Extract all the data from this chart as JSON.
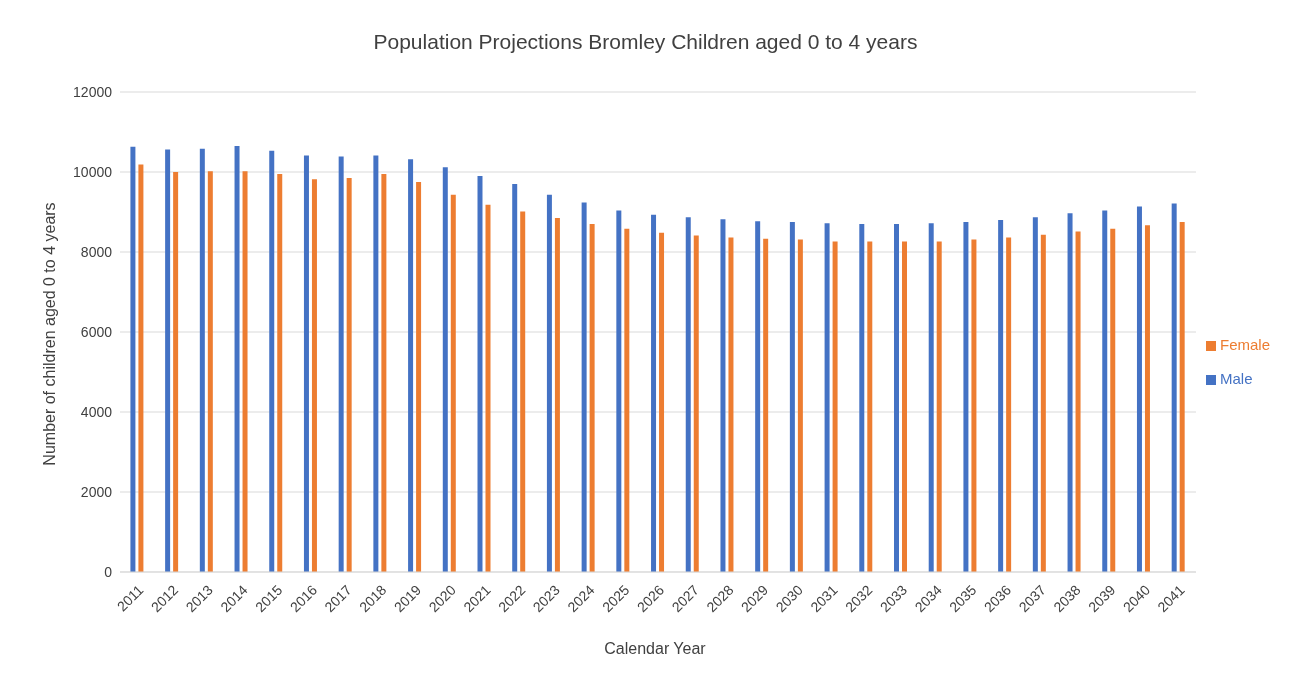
{
  "chart_data": {
    "type": "bar",
    "title": "Population Projections Bromley Children aged 0 to 4 years",
    "xlabel": "Calendar Year",
    "ylabel": "Number of children aged 0 to 4 years",
    "categories": [
      "2011",
      "2012",
      "2013",
      "2014",
      "2015",
      "2016",
      "2017",
      "2018",
      "2019",
      "2020",
      "2021",
      "2022",
      "2023",
      "2024",
      "2025",
      "2026",
      "2027",
      "2028",
      "2029",
      "2030",
      "2031",
      "2032",
      "2033",
      "2034",
      "2035",
      "2036",
      "2037",
      "2038",
      "2039",
      "2040",
      "2041"
    ],
    "series": [
      {
        "name": "Male",
        "color": "#4472c4",
        "values": [
          10630,
          10560,
          10580,
          10650,
          10530,
          10410,
          10390,
          10410,
          10320,
          10120,
          9900,
          9700,
          9430,
          9240,
          9040,
          8930,
          8870,
          8820,
          8770,
          8750,
          8720,
          8700,
          8700,
          8720,
          8750,
          8800,
          8870,
          8970,
          9040,
          9140,
          9210
        ]
      },
      {
        "name": "Female",
        "color": "#ed7d31",
        "values": [
          10190,
          10000,
          10020,
          10020,
          9950,
          9820,
          9850,
          9950,
          9750,
          9430,
          9180,
          9010,
          8850,
          8700,
          8580,
          8480,
          8410,
          8360,
          8330,
          8310,
          8260,
          8260,
          8260,
          8260,
          8310,
          8360,
          8430,
          8510,
          8580,
          8670,
          8750
        ]
      }
    ],
    "ylim": [
      0,
      12000
    ],
    "yticks": [
      0,
      2000,
      4000,
      6000,
      8000,
      10000,
      12000
    ],
    "grid": "y",
    "legend": "right"
  }
}
